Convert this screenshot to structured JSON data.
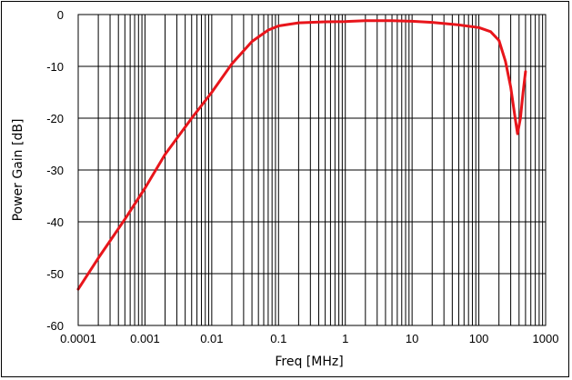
{
  "chart_data": {
    "type": "line",
    "title": "",
    "xlabel": "Freq [MHz]",
    "ylabel": "Power Gain [dB]",
    "x_scale": "log",
    "xlim": [
      0.0001,
      1000
    ],
    "ylim": [
      -60,
      0
    ],
    "x_ticks": [
      "0.0001",
      "0.001",
      "0.01",
      "0.1",
      "1",
      "10",
      "100",
      "1000"
    ],
    "y_ticks": [
      "0",
      "-10",
      "-20",
      "-30",
      "-40",
      "-50",
      "-60"
    ],
    "grid": true,
    "legend": "none",
    "series": [
      {
        "color": "#e8151b",
        "x": [
          0.0001,
          0.0002,
          0.0005,
          0.001,
          0.002,
          0.005,
          0.01,
          0.02,
          0.04,
          0.07,
          0.1,
          0.2,
          0.5,
          1,
          2,
          5,
          10,
          20,
          50,
          100,
          150,
          200,
          250,
          300,
          350,
          380,
          420,
          460,
          500
        ],
        "y": [
          -53,
          -47,
          -39.5,
          -33.5,
          -27,
          -20,
          -15,
          -9.5,
          -5.2,
          -3,
          -2.2,
          -1.6,
          -1.4,
          -1.35,
          -1.2,
          -1.2,
          -1.3,
          -1.5,
          -2,
          -2.5,
          -3.3,
          -5,
          -9,
          -14,
          -20,
          -23,
          -20,
          -15,
          -11
        ]
      }
    ]
  }
}
